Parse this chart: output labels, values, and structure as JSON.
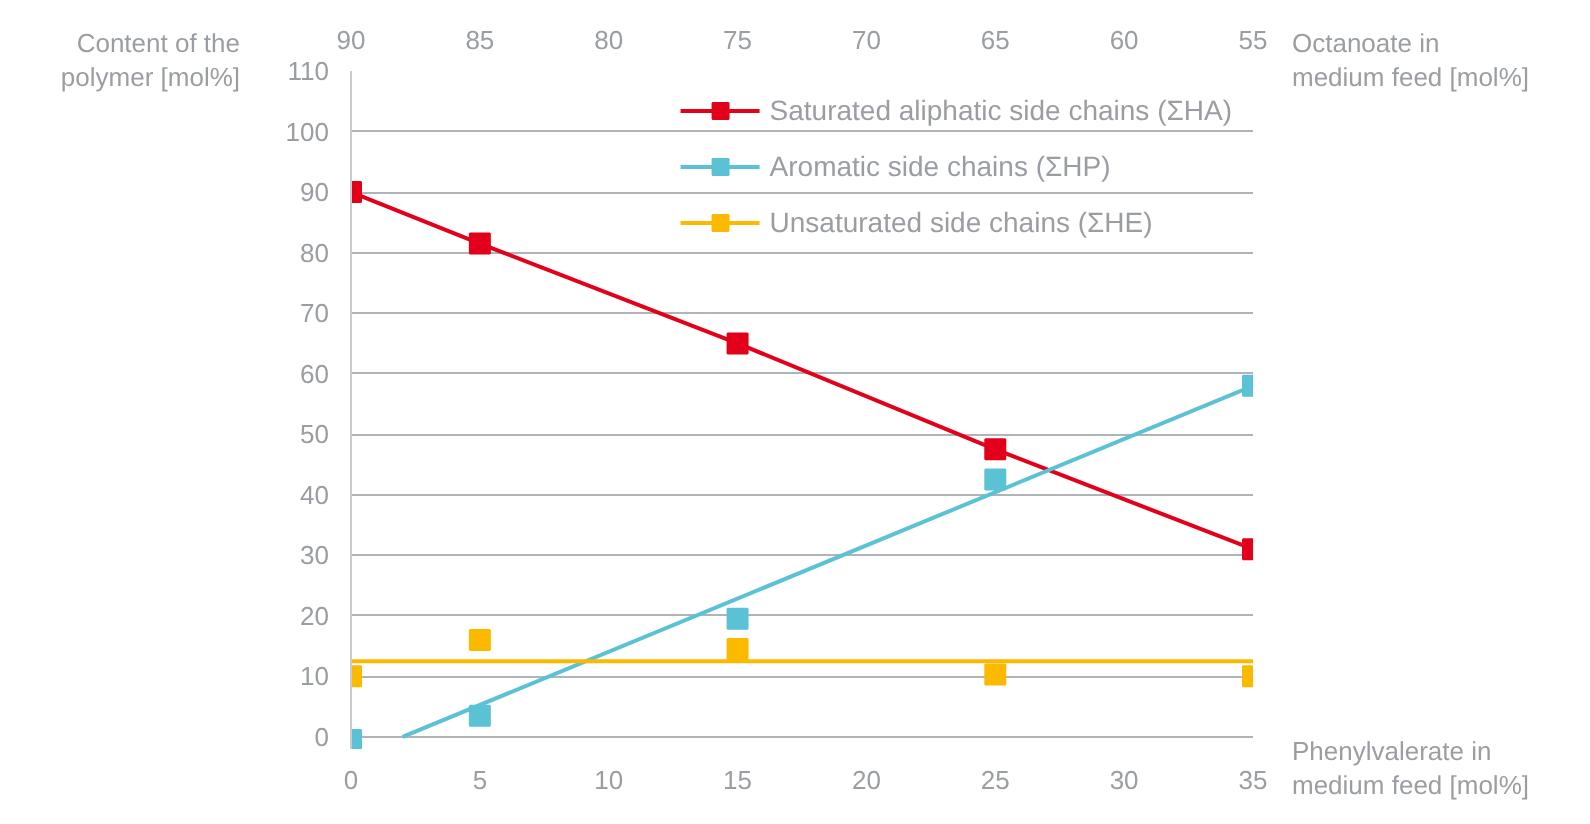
{
  "chart_data": {
    "type": "scatter",
    "xlabel": "Phenylvalerate in\nmedium feed [mol%]",
    "x2label": "Octanoate in\nmedium feed [mol%]",
    "ylabel": "Content of the\npolymer [mol%]",
    "x": [
      0,
      5,
      15,
      25,
      35
    ],
    "xlim": [
      0,
      35
    ],
    "xticks": [
      0,
      5,
      10,
      15,
      20,
      25,
      30,
      35
    ],
    "x2lim": [
      90,
      55
    ],
    "x2ticks": [
      90,
      85,
      80,
      75,
      70,
      65,
      60,
      55
    ],
    "ylim": [
      -2,
      110
    ],
    "yticks": [
      0,
      10,
      20,
      30,
      40,
      50,
      60,
      70,
      80,
      90,
      100,
      110
    ],
    "grid": "y",
    "legend": "top right",
    "marker": "square",
    "series": [
      {
        "name": "Saturated aliphatic side chains (ΣHA)",
        "type": "line",
        "color": "#e2001a",
        "values": [
          90,
          81.5,
          65,
          47.5,
          31
        ]
      },
      {
        "name": "Aromatic side chains (ΣHP)",
        "color": "#5bc2d6",
        "values": [
          -0.5,
          3.5,
          19.5,
          42.5,
          58
        ]
      },
      {
        "type": "line",
        "marker": "none",
        "color": "#5bc2d6",
        "x": [
          2,
          35
        ],
        "values": [
          0,
          58
        ]
      },
      {
        "name": "Unsaturated side chains (ΣHE)",
        "color": "#fbb900",
        "values": [
          10,
          16,
          14.5,
          10.3,
          10
        ]
      },
      {
        "type": "line",
        "marker": "none",
        "color": "#fbb900",
        "x": [
          0,
          35
        ],
        "values": [
          12.5,
          12.5
        ]
      }
    ]
  }
}
